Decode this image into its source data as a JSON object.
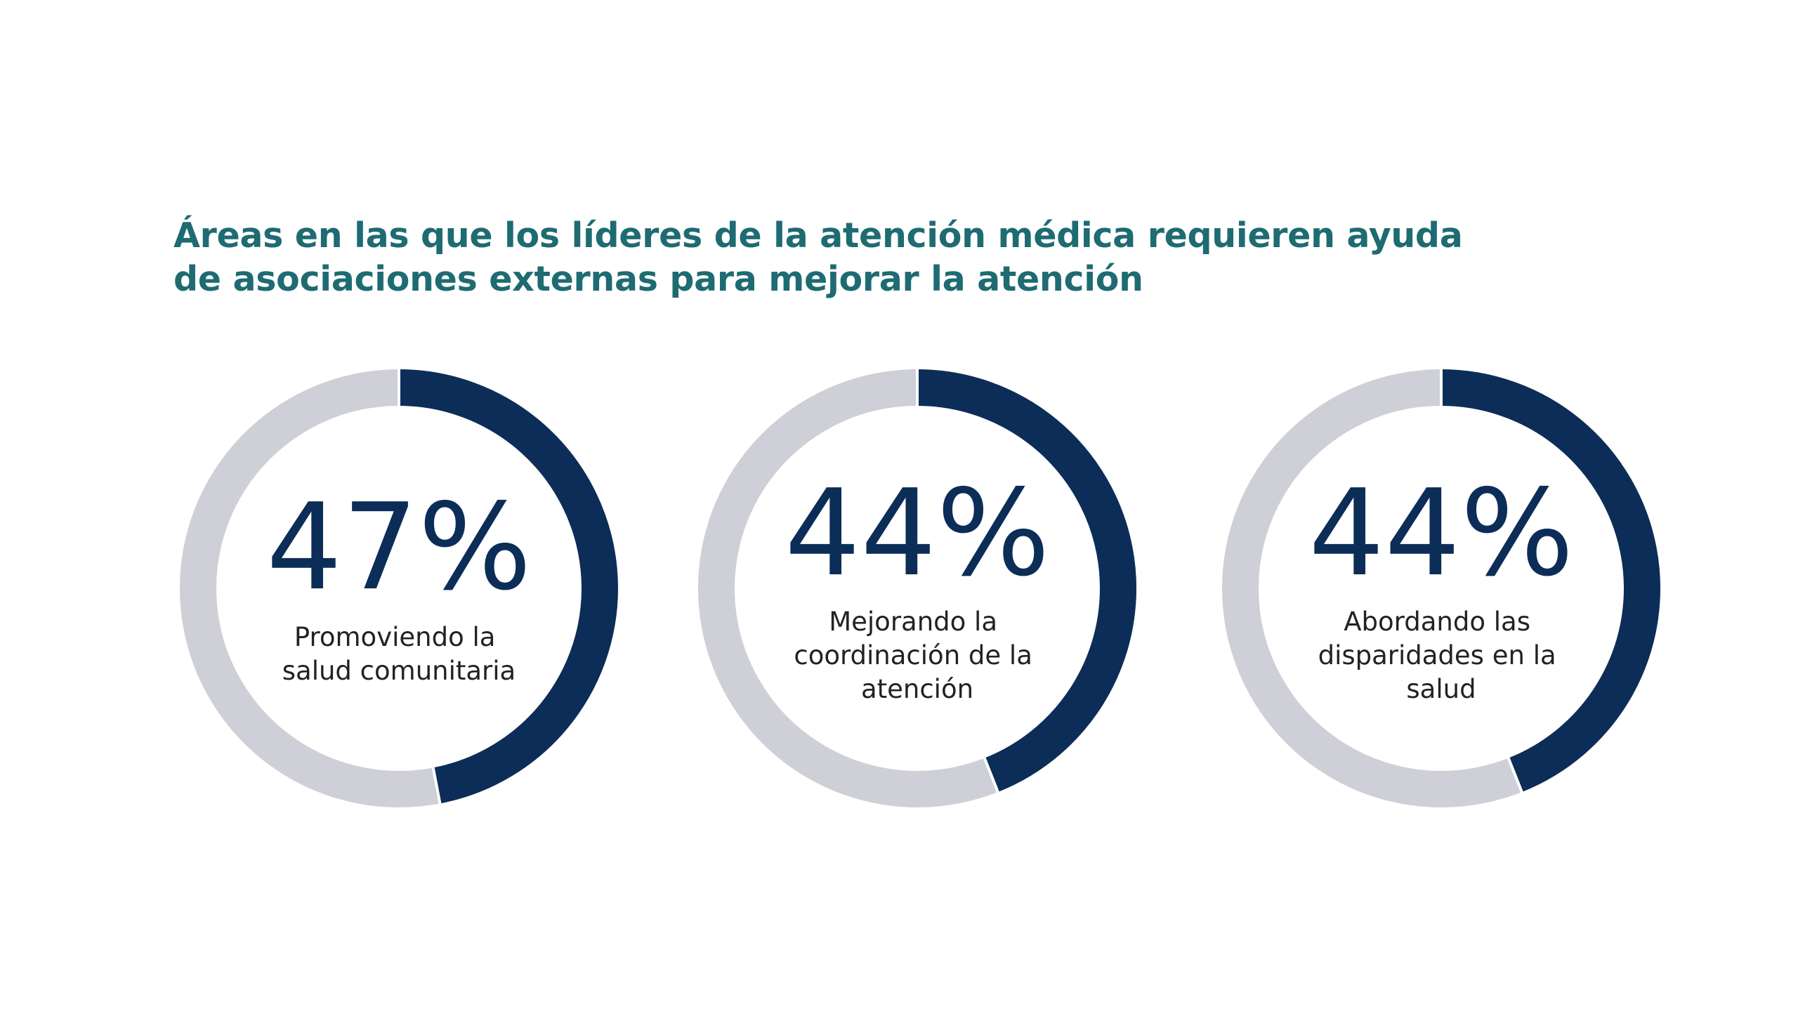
{
  "title": {
    "line1": "Áreas en las que los líderes de la atención médica requieren ayuda",
    "line2": "de asociaciones externas para mejorar la atención"
  },
  "colors": {
    "title": "#1e6b72",
    "filled": "#0c2d57",
    "track": "#cfd0d7",
    "separator": "#ffffff",
    "percent_text": "#0c2d57",
    "label_text": "#222222"
  },
  "chart_data": [
    {
      "type": "pie",
      "value": 47,
      "value_label": "47%",
      "label_lines": [
        "Promoviendo la",
        "salud comunitaria"
      ]
    },
    {
      "type": "pie",
      "value": 44,
      "value_label": "44%",
      "label_lines": [
        "Mejorando la",
        "coordinación de la",
        "atención"
      ]
    },
    {
      "type": "pie",
      "value": 44,
      "value_label": "44%",
      "label_lines": [
        "Abordando las",
        "disparidades en la",
        "salud"
      ]
    }
  ]
}
